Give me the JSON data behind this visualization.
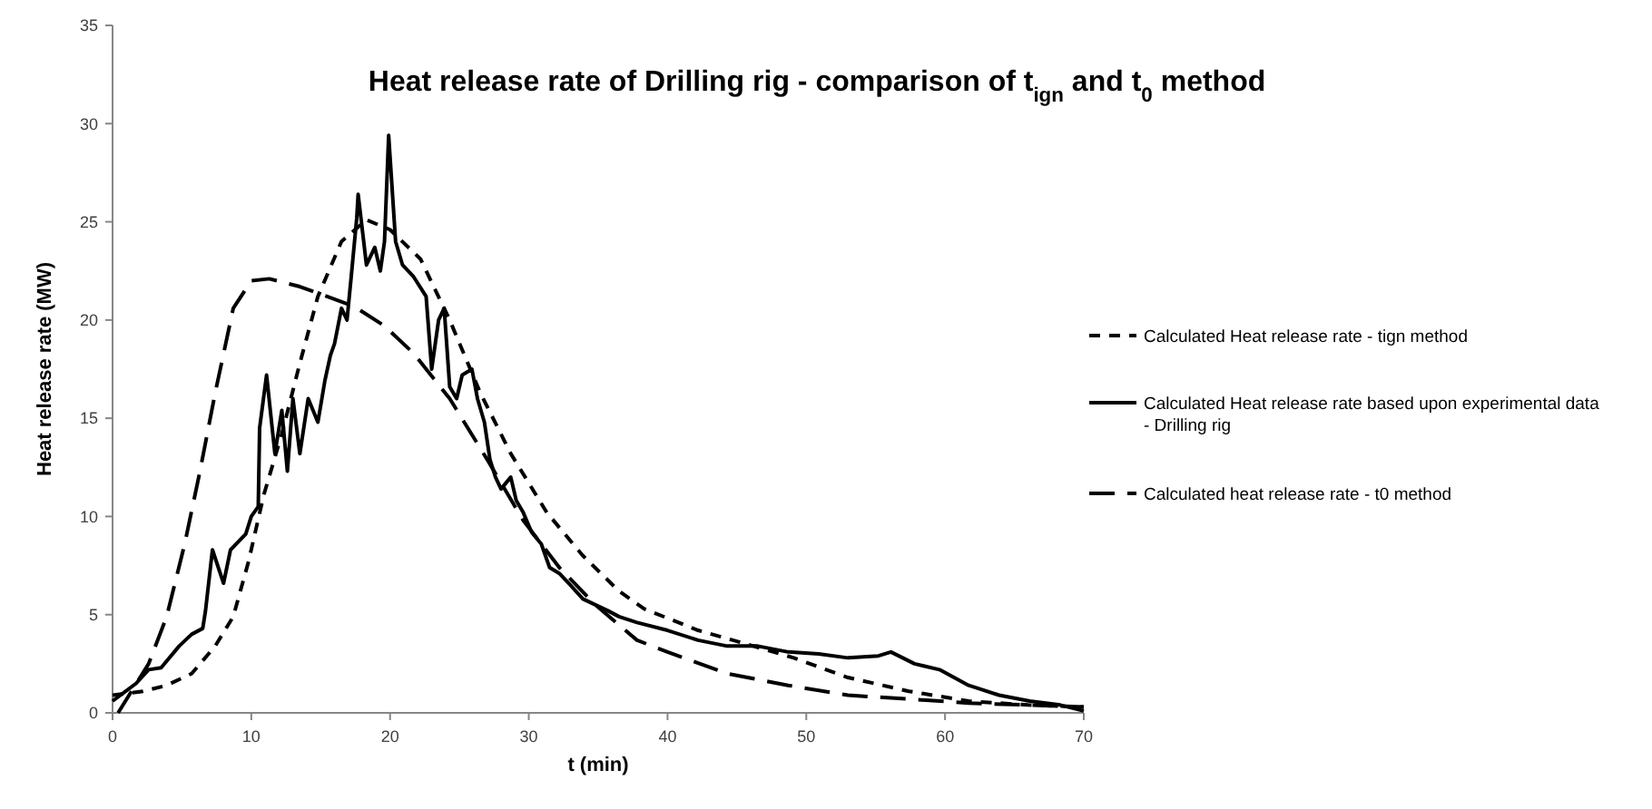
{
  "chart_data": {
    "type": "line",
    "title": "Heat release rate of Drilling rig - comparison of t$_{ign}$ and t$_{0}$ method",
    "xlabel": "t (min)",
    "ylabel": "Heat release rate (MW)",
    "xlim": [
      0,
      70
    ],
    "xticks": [
      0,
      10,
      20,
      30,
      40,
      50,
      60,
      70
    ],
    "ylim": [
      0,
      35
    ],
    "yticks": [
      0,
      5,
      10,
      15,
      20,
      25,
      30,
      35
    ],
    "grid": false,
    "legend": "right",
    "marker": "none",
    "series": [
      {
        "name": "Calculated Heat release rate  - tign method",
        "color": "#000000",
        "line_style": "dashed",
        "x": [
          0,
          2.2,
          3.9,
          5.7,
          7.4,
          8.7,
          9.8,
          10.9,
          12.2,
          13.5,
          14.8,
          16.5,
          18.3,
          20,
          22.2,
          24.3,
          26.5,
          28.7,
          31.3,
          33.9,
          36.5,
          38.3,
          42.2,
          45.7,
          49.1,
          53,
          57.4,
          61.7,
          66,
          70
        ],
        "values": [
          0.9,
          1.1,
          1.4,
          2,
          3.4,
          4.9,
          7.7,
          11.1,
          14.2,
          17.8,
          21.2,
          24,
          25.1,
          24.6,
          23.1,
          20,
          16.3,
          13.2,
          10.2,
          8,
          6.2,
          5.3,
          4.2,
          3.5,
          2.8,
          1.8,
          1.1,
          0.6,
          0.4,
          0.3
        ]
      },
      {
        "name": "Calculated Heat release rate based upon experimental data - Drilling rig",
        "color": "#000000",
        "line_style": "solid",
        "x": [
          0,
          1.7,
          2.6,
          3.5,
          4.8,
          5.7,
          6.5,
          6.7,
          7.2,
          8,
          8.5,
          9.6,
          10,
          10.5,
          10.6,
          11.1,
          11.7,
          12.2,
          12.6,
          13,
          13.5,
          14.1,
          14.8,
          15.3,
          15.7,
          16,
          16.5,
          16.9,
          17.2,
          17.6,
          17.7,
          18.3,
          18.9,
          19.3,
          19.6,
          19.9,
          20.4,
          20.9,
          21.7,
          22.6,
          23,
          23.5,
          23.9,
          24.3,
          24.8,
          25.2,
          25.9,
          26.3,
          26.8,
          27.2,
          27.6,
          28,
          28.7,
          29.1,
          29.6,
          30.2,
          30.9,
          31.5,
          32.2,
          33,
          33.9,
          34.8,
          35.7,
          36.5,
          37.8,
          40,
          42.2,
          44.3,
          46.5,
          48.7,
          50.9,
          53,
          55.2,
          56.1,
          57.8,
          59.6,
          61.7,
          63.9,
          66.1,
          68.3,
          70
        ],
        "values": [
          0.6,
          1.5,
          2.2,
          2.3,
          3.4,
          4,
          4.3,
          5.2,
          8.3,
          6.6,
          8.3,
          9.1,
          10,
          10.5,
          14.5,
          17.2,
          13.2,
          15.4,
          12.3,
          16,
          13.2,
          16,
          14.8,
          16.9,
          18.2,
          18.8,
          20.6,
          20,
          22.2,
          25.2,
          26.4,
          22.8,
          23.7,
          22.5,
          24,
          29.4,
          24,
          22.8,
          22.2,
          21.2,
          17.5,
          20,
          20.6,
          16.6,
          16,
          17.2,
          17.5,
          16,
          14.8,
          12.9,
          12,
          11.4,
          12,
          10.8,
          10.2,
          9.2,
          8.6,
          7.4,
          7.1,
          6.5,
          5.8,
          5.5,
          5.2,
          4.9,
          4.6,
          4.2,
          3.7,
          3.4,
          3.4,
          3.1,
          3,
          2.8,
          2.9,
          3.1,
          2.5,
          2.2,
          1.4,
          0.9,
          0.6,
          0.4,
          0.1
        ]
      },
      {
        "name": "Calculated heat release rate - t0 method",
        "color": "#000000",
        "line_style": "dashed",
        "x": [
          0.4,
          2.6,
          3.9,
          5.2,
          6.3,
          7.4,
          8.7,
          10,
          11.3,
          13.5,
          17.4,
          19.6,
          21.7,
          24.3,
          27,
          29.6,
          32.2,
          34.8,
          37.8,
          40,
          44.3,
          48.7,
          53,
          57.4,
          61.7,
          70
        ],
        "values": [
          0,
          2.5,
          4.9,
          8.6,
          12.3,
          16.3,
          20.6,
          22,
          22.1,
          21.7,
          20.7,
          19.7,
          18.3,
          16,
          12.9,
          9.8,
          7.4,
          5.5,
          3.7,
          3.1,
          2,
          1.4,
          0.9,
          0.7,
          0.5,
          0.3
        ]
      }
    ]
  }
}
